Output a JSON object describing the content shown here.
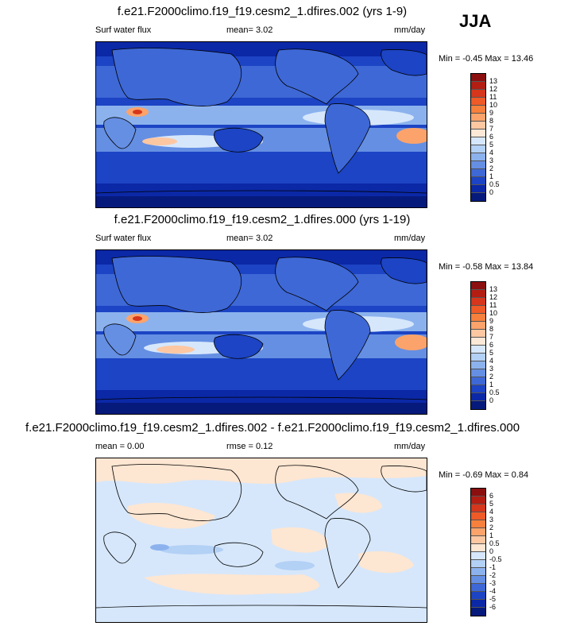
{
  "season": "JJA",
  "panels": [
    {
      "title": "f.e21.F2000climo.f19_f19.cesm2_1.dfires.002 (yrs 1-9)",
      "left_label": "Surf water flux",
      "mean_text": "mean=   3.02",
      "units": "mm/day",
      "minmax": "Min =  -0.45 Max =  13.46",
      "levels": [
        "13",
        "12",
        "11",
        "10",
        "9",
        "8",
        "7",
        "6",
        "5",
        "4",
        "3",
        "2",
        "1",
        "0.5",
        "0"
      ],
      "colors": [
        "#8c0f0f",
        "#b31d12",
        "#d6361b",
        "#ef5a26",
        "#f7803c",
        "#fba36b",
        "#fdc7a2",
        "#fbe8d6",
        "#d6e7fb",
        "#b3d0f5",
        "#8cb2ee",
        "#658fe3",
        "#3e68d6",
        "#1c44c4",
        "#0b28a6",
        "#061a7c"
      ]
    },
    {
      "title": "f.e21.F2000climo.f19_f19.cesm2_1.dfires.000 (yrs 1-19)",
      "left_label": "Surf water flux",
      "mean_text": "mean=   3.02",
      "units": "mm/day",
      "minmax": "Min =  -0.58 Max =  13.84",
      "levels": [
        "13",
        "12",
        "11",
        "10",
        "9",
        "8",
        "7",
        "6",
        "5",
        "4",
        "3",
        "2",
        "1",
        "0.5",
        "0"
      ],
      "colors": [
        "#8c0f0f",
        "#b31d12",
        "#d6361b",
        "#ef5a26",
        "#f7803c",
        "#fba36b",
        "#fdc7a2",
        "#fbe8d6",
        "#d6e7fb",
        "#b3d0f5",
        "#8cb2ee",
        "#658fe3",
        "#3e68d6",
        "#1c44c4",
        "#0b28a6",
        "#061a7c"
      ]
    },
    {
      "title": "f.e21.F2000climo.f19_f19.cesm2_1.dfires.002 - f.e21.F2000climo.f19_f19.cesm2_1.dfires.000",
      "left_label": "mean =   0.00",
      "mean_text": "rmse =   0.12",
      "units": "mm/day",
      "minmax": "Min =  -0.69 Max =   0.84",
      "levels": [
        "6",
        "5",
        "4",
        "3",
        "2",
        "1",
        "0.5",
        "0",
        "-0.5",
        "-1",
        "-2",
        "-3",
        "-4",
        "-5",
        "-6"
      ],
      "colors": [
        "#8c0f0f",
        "#b31d12",
        "#d6361b",
        "#ef5a26",
        "#f7803c",
        "#fba36b",
        "#fdc7a2",
        "#fde6d2",
        "#d6e7fb",
        "#b3d0f5",
        "#8cb2ee",
        "#658fe3",
        "#3e68d6",
        "#1c44c4",
        "#0b28a6",
        "#061a7c"
      ]
    }
  ]
}
